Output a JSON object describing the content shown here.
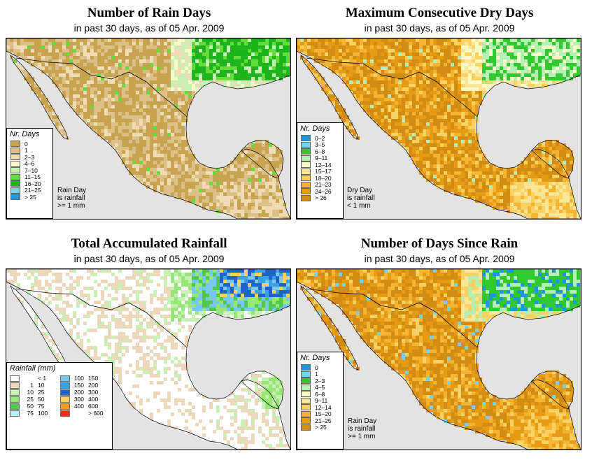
{
  "panels": [
    {
      "id": "rain-days",
      "title": "Number of Rain Days",
      "subtitle": "in past 30 days, as of  05 Apr. 2009",
      "legend_title": "Nr. Days",
      "legend": [
        {
          "label": "0",
          "color": "#c8a450"
        },
        {
          "label": "1",
          "color": "#dcc088"
        },
        {
          "label": "2–3",
          "color": "#f0dcb4"
        },
        {
          "label": "4–6",
          "color": "#fafac8"
        },
        {
          "label": "7–10",
          "color": "#c8f0b4"
        },
        {
          "label": "11–15",
          "color": "#64dc3c"
        },
        {
          "label": "16–20",
          "color": "#1eb41e"
        },
        {
          "label": "21–25",
          "color": "#78d2f0"
        },
        {
          "label": "> 25",
          "color": "#2896dc"
        }
      ],
      "note": [
        "Rain Day",
        "is rainfall",
        ">= 1 mm"
      ]
    },
    {
      "id": "max-dry-days",
      "title": "Maximum Consecutive Dry Days",
      "subtitle": "in past 30 days, as of  05 Apr. 2009",
      "legend_title": "Nr. Days",
      "legend": [
        {
          "label": "0–2",
          "color": "#1e96dc"
        },
        {
          "label": "3–5",
          "color": "#78d2f0"
        },
        {
          "label": "6–8",
          "color": "#32c832"
        },
        {
          "label": "9–11",
          "color": "#b4f0b4"
        },
        {
          "label": "12–14",
          "color": "#fafac8"
        },
        {
          "label": "15–17",
          "color": "#fae696"
        },
        {
          "label": "18–20",
          "color": "#fad264"
        },
        {
          "label": "21–23",
          "color": "#f5b432"
        },
        {
          "label": "24–26",
          "color": "#e69b14"
        },
        {
          "label": "> 26",
          "color": "#d28c14"
        }
      ],
      "note": [
        "Dry Day",
        "is rainfall",
        "< 1 mm"
      ]
    },
    {
      "id": "total-rainfall",
      "title": "Total Accumulated Rainfall",
      "subtitle": "in past 30 days, as of  05 Apr. 2009",
      "legend_title": "Rainfall (mm)",
      "legend_left": [
        {
          "lo": "",
          "hi": "< 1",
          "color": "#ffffff"
        },
        {
          "lo": "1",
          "hi": "10",
          "color": "#ebd7b9"
        },
        {
          "lo": "10",
          "hi": "25",
          "color": "#c8f0b4"
        },
        {
          "lo": "25",
          "hi": "50",
          "color": "#96e678"
        },
        {
          "lo": "50",
          "hi": "75",
          "color": "#50c850"
        },
        {
          "lo": "75",
          "hi": "100",
          "color": "#b4f0f0"
        }
      ],
      "legend_right": [
        {
          "lo": "100",
          "hi": "150",
          "color": "#78c8f0"
        },
        {
          "lo": "150",
          "hi": "200",
          "color": "#3ca0e6"
        },
        {
          "lo": "200",
          "hi": "300",
          "color": "#1e64c8"
        },
        {
          "lo": "300",
          "hi": "400",
          "color": "#fad264"
        },
        {
          "lo": "400",
          "hi": "600",
          "color": "#f59b1e"
        },
        {
          "lo": "",
          "hi": "> 600",
          "color": "#e63214"
        }
      ]
    },
    {
      "id": "days-since-rain",
      "title": "Number of Days Since Rain",
      "subtitle": "in past 30 days, as of  05 Apr. 2009",
      "legend_title": "Nr. Days",
      "legend": [
        {
          "label": "0",
          "color": "#1e96dc"
        },
        {
          "label": "1",
          "color": "#78d2f0"
        },
        {
          "label": "2–3",
          "color": "#32c832"
        },
        {
          "label": "4–5",
          "color": "#b4f0b4"
        },
        {
          "label": "6–8",
          "color": "#fafac8"
        },
        {
          "label": "9–11",
          "color": "#fae696"
        },
        {
          "label": "12–14",
          "color": "#fad264"
        },
        {
          "label": "15–20",
          "color": "#f5b432"
        },
        {
          "label": "21–25",
          "color": "#e69b14"
        },
        {
          "label": "> 25",
          "color": "#d28c14"
        }
      ],
      "note": [
        "Rain Day",
        "is rainfall",
        ">= 1 mm"
      ]
    }
  ],
  "map_colors": {
    "ocean": "#e3e3e3",
    "border": "#000000"
  }
}
